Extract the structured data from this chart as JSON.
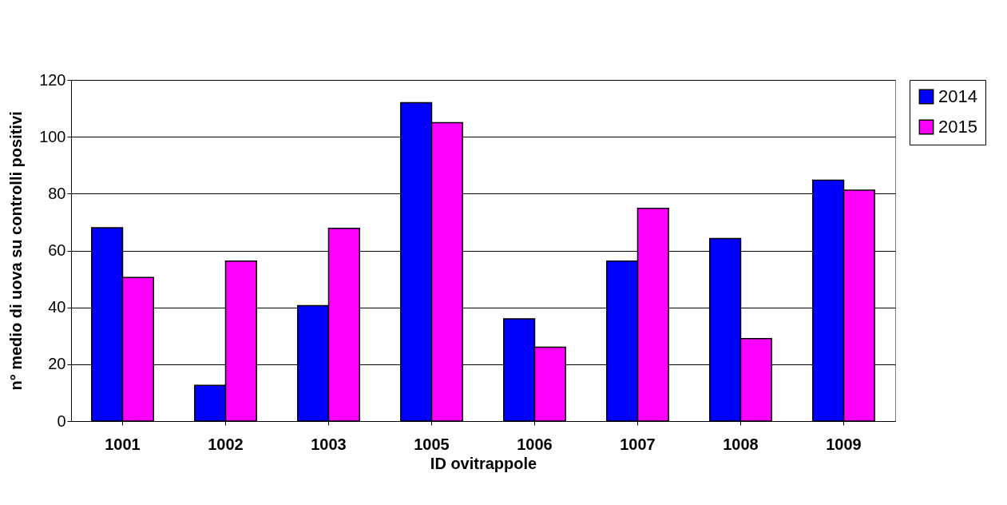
{
  "chart_data": {
    "type": "bar",
    "xlabel": "ID ovitrappole",
    "ylabel": "n° medio di uova su controlli positivi",
    "categories": [
      "1001",
      "1002",
      "1003",
      "1005",
      "1006",
      "1007",
      "1008",
      "1009"
    ],
    "series": [
      {
        "name": "2014",
        "color": "#0000ff",
        "values": [
          68,
          12.6,
          40.6,
          112,
          36,
          56.3,
          64.2,
          84.7
        ]
      },
      {
        "name": "2015",
        "color": "#ff00ff",
        "values": [
          50.5,
          56.3,
          67.8,
          105,
          26,
          74.8,
          29,
          81.2
        ]
      }
    ],
    "ylim": [
      0,
      120
    ],
    "yticks": [
      0,
      20,
      40,
      60,
      80,
      100,
      120
    ],
    "grid": "y",
    "legend": "right"
  }
}
